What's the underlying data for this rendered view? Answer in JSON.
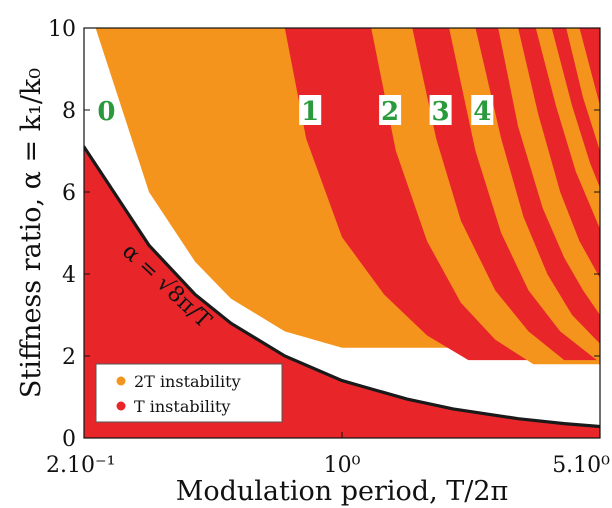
{
  "chart_data": {
    "type": "area",
    "title": "",
    "xlabel": "Modulation period, T/2π",
    "ylabel": "Stiffness ratio, α = k₁/k₀",
    "x_scale": "log",
    "xlim": [
      0.2,
      5.0
    ],
    "ylim": [
      0,
      10
    ],
    "x_ticks": [
      {
        "value": 0.2,
        "label": "2.10⁻¹"
      },
      {
        "value": 1.0,
        "label": "10⁰"
      },
      {
        "value": 5.0,
        "label": "5.10⁰"
      }
    ],
    "y_ticks": [
      0,
      2,
      4,
      6,
      8,
      10
    ],
    "grid": false,
    "colors": {
      "orange_2T": "#f5941d",
      "red_T": "#e8262a",
      "curve": "#1a1a1a",
      "label_green": "#2a9a3c"
    },
    "legend": {
      "placement": "bottom-left",
      "entries": [
        {
          "label": "2T instability",
          "color": "#f5941d"
        },
        {
          "label": "T instability",
          "color": "#e8262a"
        }
      ]
    },
    "curve": {
      "label": "α = √8π/T",
      "x": [
        0.2,
        0.3,
        0.4,
        0.5,
        0.7,
        1.0,
        1.5,
        2.0,
        3.0,
        4.0,
        5.0
      ],
      "y": [
        7.1,
        4.7,
        3.5,
        2.8,
        2.0,
        1.4,
        0.95,
        0.71,
        0.47,
        0.35,
        0.28
      ]
    },
    "tongue_boundaries": [
      {
        "x": [
          0.215,
          0.3,
          0.4,
          0.5,
          0.7,
          1.0
        ],
        "y": [
          10.0,
          6.0,
          4.3,
          3.4,
          2.6,
          2.2
        ]
      },
      {
        "x": [
          0.7,
          0.8,
          1.0,
          1.3,
          1.7,
          2.2
        ],
        "y": [
          10.0,
          7.3,
          4.9,
          3.5,
          2.5,
          1.9
        ]
      },
      {
        "x": [
          1.2,
          1.4,
          1.7,
          2.1,
          2.6,
          3.3
        ],
        "y": [
          10.0,
          7.0,
          4.8,
          3.3,
          2.4,
          1.8
        ]
      },
      {
        "x": [
          1.55,
          1.8,
          2.1,
          2.6,
          3.2,
          4.0
        ],
        "y": [
          10.0,
          7.3,
          5.3,
          3.6,
          2.6,
          1.9
        ]
      },
      {
        "x": [
          1.95,
          2.3,
          2.7,
          3.2,
          3.9,
          4.9
        ],
        "y": [
          10.0,
          7.0,
          5.0,
          3.6,
          2.6,
          1.9
        ]
      },
      {
        "x": [
          2.3,
          2.7,
          3.1,
          3.6,
          4.2,
          5.0
        ],
        "y": [
          10.0,
          7.3,
          5.4,
          4.0,
          3.0,
          2.3
        ]
      },
      {
        "x": [
          2.65,
          3.0,
          3.5,
          4.0,
          4.5,
          5.0
        ],
        "y": [
          10.0,
          7.6,
          5.6,
          4.4,
          3.6,
          3.0
        ]
      },
      {
        "x": [
          3.0,
          3.4,
          3.9,
          4.4,
          5.0
        ],
        "y": [
          10.0,
          7.9,
          6.0,
          4.8,
          3.9
        ]
      },
      {
        "x": [
          3.35,
          3.8,
          4.3,
          5.0
        ],
        "y": [
          10.0,
          8.1,
          6.5,
          5.1
        ]
      },
      {
        "x": [
          3.7,
          4.2,
          4.7,
          5.0
        ],
        "y": [
          10.0,
          8.1,
          6.7,
          6.1
        ]
      },
      {
        "x": [
          4.05,
          4.5,
          5.0
        ],
        "y": [
          10.0,
          8.3,
          7.0
        ]
      },
      {
        "x": [
          4.4,
          4.8,
          5.0
        ],
        "y": [
          10.0,
          8.7,
          8.1
        ]
      }
    ],
    "region_labels": [
      {
        "text": "0",
        "x": 0.23,
        "y": 8.0
      },
      {
        "text": "1",
        "x": 0.82,
        "y": 8.0
      },
      {
        "text": "2",
        "x": 1.35,
        "y": 8.0
      },
      {
        "text": "3",
        "x": 1.85,
        "y": 8.0
      },
      {
        "text": "4",
        "x": 2.4,
        "y": 8.0
      }
    ]
  }
}
